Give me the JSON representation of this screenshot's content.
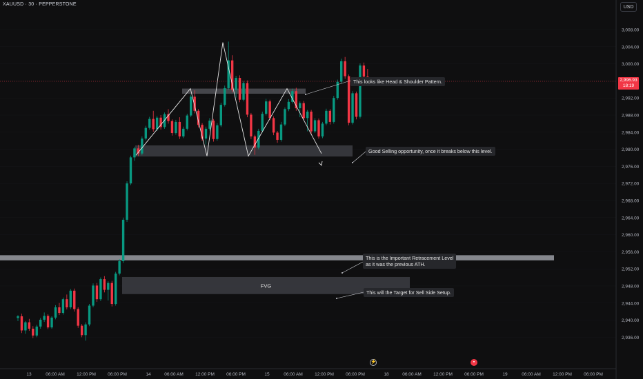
{
  "header": {
    "symbol": "XAUUSD · 30 · PEPPERSTONE",
    "currency": "USD"
  },
  "last_price": {
    "value": "2,996.93",
    "countdown": "18:19"
  },
  "chart_data": {
    "type": "candlestick",
    "y_ticks": [
      2936,
      2940,
      2944,
      2948,
      2952,
      2956,
      2960,
      2964,
      2968,
      2972,
      2976,
      2980,
      2984,
      2988,
      2992,
      2996,
      3000,
      3004,
      3008
    ],
    "y_tick_labels": [
      "2,936.00",
      "2,940.00",
      "2,944.00",
      "2,948.00",
      "2,952.00",
      "2,956.00",
      "2,960.00",
      "2,964.00",
      "2,968.00",
      "2,972.00",
      "2,976.00",
      "2,980.00",
      "2,984.00",
      "2,988.00",
      "2,992.00",
      "2,996.00",
      "3,000.00",
      "3,004.00",
      "3,008.00"
    ],
    "x_labels": [
      "13",
      "06:00 AM",
      "12:00 PM",
      "06:00 PM",
      "14",
      "06:00 AM",
      "12:00 PM",
      "06:00 PM",
      "15",
      "06:00 AM",
      "12:00 PM",
      "06:00 PM",
      "18",
      "06:00 AM",
      "12:00 PM",
      "06:00 PM",
      "19",
      "06:00 AM",
      "12:00 PM",
      "06:00 PM"
    ],
    "candles": [
      [
        2940.5,
        2941.2,
        2939.8,
        2940.9
      ],
      [
        2940.9,
        2941.5,
        2937.0,
        2937.6
      ],
      [
        2937.6,
        2939.8,
        2936.8,
        2939.5
      ],
      [
        2939.5,
        2940.3,
        2937.5,
        2938.0
      ],
      [
        2938.0,
        2938.6,
        2935.8,
        2936.4
      ],
      [
        2936.4,
        2938.9,
        2936.0,
        2938.5
      ],
      [
        2938.5,
        2940.5,
        2938.0,
        2940.1
      ],
      [
        2940.1,
        2941.8,
        2939.6,
        2941.0
      ],
      [
        2941.0,
        2941.4,
        2937.9,
        2938.3
      ],
      [
        2938.3,
        2940.9,
        2938.0,
        2940.6
      ],
      [
        2940.6,
        2943.5,
        2940.2,
        2943.0
      ],
      [
        2943.0,
        2944.0,
        2941.2,
        2941.7
      ],
      [
        2941.7,
        2945.3,
        2941.3,
        2944.9
      ],
      [
        2944.9,
        2946.0,
        2942.5,
        2943.0
      ],
      [
        2943.0,
        2947.3,
        2942.6,
        2946.9
      ],
      [
        2946.9,
        2947.4,
        2942.0,
        2942.6
      ],
      [
        2942.6,
        2943.0,
        2938.2,
        2938.7
      ],
      [
        2938.7,
        2939.1,
        2936.0,
        2936.5
      ],
      [
        2936.5,
        2939.5,
        2935.2,
        2939.0
      ],
      [
        2939.0,
        2943.8,
        2938.6,
        2943.4
      ],
      [
        2943.4,
        2948.6,
        2943.0,
        2948.1
      ],
      [
        2948.1,
        2948.7,
        2944.3,
        2944.9
      ],
      [
        2944.9,
        2950.0,
        2944.5,
        2949.6
      ],
      [
        2949.6,
        2950.3,
        2946.5,
        2947.1
      ],
      [
        2947.1,
        2949.1,
        2944.6,
        2948.7
      ],
      [
        2948.7,
        2949.2,
        2943.2,
        2943.8
      ],
      [
        2943.8,
        2951.3,
        2943.4,
        2950.9
      ],
      [
        2950.9,
        2954.3,
        2950.5,
        2953.8
      ],
      [
        2953.8,
        2964.0,
        2953.4,
        2963.5
      ],
      [
        2963.5,
        2972.5,
        2963.0,
        2972.0
      ],
      [
        2972.0,
        2978.5,
        2971.6,
        2978.1
      ],
      [
        2978.1,
        2980.6,
        2977.3,
        2980.2
      ],
      [
        2980.2,
        2981.0,
        2978.4,
        2979.0
      ],
      [
        2979.0,
        2983.0,
        2978.6,
        2982.5
      ],
      [
        2982.5,
        2985.5,
        2982.1,
        2985.0
      ],
      [
        2985.0,
        2987.6,
        2984.6,
        2987.1
      ],
      [
        2987.1,
        2989.0,
        2984.1,
        2984.7
      ],
      [
        2984.7,
        2987.8,
        2984.3,
        2987.4
      ],
      [
        2987.4,
        2988.0,
        2984.6,
        2985.2
      ],
      [
        2985.2,
        2988.6,
        2984.8,
        2988.2
      ],
      [
        2988.2,
        2989.4,
        2986.0,
        2986.6
      ],
      [
        2986.6,
        2987.0,
        2983.2,
        2983.8
      ],
      [
        2983.8,
        2986.9,
        2983.4,
        2986.4
      ],
      [
        2986.4,
        2987.5,
        2982.4,
        2983.0
      ],
      [
        2983.0,
        2985.3,
        2982.6,
        2984.8
      ],
      [
        2984.8,
        2988.3,
        2984.4,
        2987.9
      ],
      [
        2987.9,
        2992.8,
        2987.5,
        2992.3
      ],
      [
        2992.3,
        2993.8,
        2988.4,
        2989.0
      ],
      [
        2989.0,
        2989.4,
        2985.1,
        2985.7
      ],
      [
        2985.7,
        2986.1,
        2981.9,
        2982.5
      ],
      [
        2982.5,
        2985.3,
        2981.1,
        2984.8
      ],
      [
        2984.8,
        2987.3,
        2984.4,
        2986.7
      ],
      [
        2986.7,
        2987.1,
        2981.8,
        2982.4
      ],
      [
        2982.4,
        2986.1,
        2982.0,
        2985.6
      ],
      [
        2985.6,
        2990.9,
        2985.2,
        2990.4
      ],
      [
        2990.4,
        2994.9,
        2990.0,
        2994.3
      ],
      [
        2994.3,
        3005.2,
        2993.9,
        3000.8
      ],
      [
        3000.8,
        3002.0,
        2993.3,
        2993.9
      ],
      [
        2993.9,
        2997.2,
        2992.1,
        2996.7
      ],
      [
        2996.7,
        2997.3,
        2991.0,
        2991.6
      ],
      [
        2991.6,
        2996.0,
        2991.2,
        2995.5
      ],
      [
        2995.5,
        2996.1,
        2987.5,
        2988.1
      ],
      [
        2988.1,
        2988.5,
        2982.4,
        2983.0
      ],
      [
        2983.0,
        2983.4,
        2978.7,
        2980.4
      ],
      [
        2980.4,
        2984.8,
        2980.0,
        2984.3
      ],
      [
        2984.3,
        2988.8,
        2983.9,
        2988.3
      ],
      [
        2988.3,
        2991.8,
        2987.9,
        2991.2
      ],
      [
        2991.2,
        2991.6,
        2986.8,
        2987.3
      ],
      [
        2987.3,
        2987.7,
        2983.3,
        2983.9
      ],
      [
        2983.9,
        2984.3,
        2981.5,
        2982.2
      ],
      [
        2982.2,
        2986.4,
        2981.8,
        2985.8
      ],
      [
        2985.8,
        2989.8,
        2985.4,
        2989.4
      ],
      [
        2989.4,
        2991.7,
        2988.9,
        2991.1
      ],
      [
        2991.1,
        2994.2,
        2990.7,
        2993.6
      ],
      [
        2993.6,
        2994.4,
        2989.0,
        2989.6
      ],
      [
        2989.6,
        2991.2,
        2987.5,
        2990.8
      ],
      [
        2990.8,
        2991.3,
        2986.8,
        2987.3
      ],
      [
        2987.3,
        2989.2,
        2984.2,
        2988.8
      ],
      [
        2988.8,
        2989.2,
        2983.6,
        2984.2
      ],
      [
        2984.2,
        2987.3,
        2983.8,
        2986.8
      ],
      [
        2986.8,
        2987.2,
        2982.5,
        2983.0
      ],
      [
        2983.0,
        2986.4,
        2982.6,
        2986.0
      ],
      [
        2986.0,
        2989.5,
        2985.6,
        2989.0
      ],
      [
        2989.0,
        2989.4,
        2985.8,
        2986.4
      ],
      [
        2986.4,
        2992.5,
        2986.0,
        2992.0
      ],
      [
        2992.0,
        2996.3,
        2991.6,
        2995.8
      ],
      [
        2995.8,
        3001.2,
        2995.4,
        3000.6
      ],
      [
        3000.6,
        3001.6,
        2996.5,
        2997.1
      ],
      [
        2997.1,
        2997.5,
        2985.6,
        2986.2
      ],
      [
        2986.2,
        2993.6,
        2985.8,
        2993.1
      ],
      [
        2993.1,
        2993.5,
        2987.0,
        2987.6
      ],
      [
        2987.6,
        3000.1,
        2987.2,
        2999.6
      ],
      [
        2999.6,
        3000.3,
        2995.2,
        2997.0
      ],
      [
        2997.0,
        2998.8,
        2995.6,
        2996.93
      ]
    ],
    "last_price": 2996.93,
    "zones": [
      {
        "name": "neckline-zone",
        "y_low": 2978.3,
        "y_high": 2980.9
      },
      {
        "name": "shoulder-resistance-zone",
        "y_low": 2993.0,
        "y_high": 2994.2
      },
      {
        "name": "previous-ath-level",
        "y_low": 2954.0,
        "y_high": 2955.2
      },
      {
        "name": "fvg-zone",
        "label": "FVG",
        "y_low": 2946.1,
        "y_high": 2950.1
      }
    ],
    "head_and_shoulders_path": [
      [
        2978.6
      ],
      [
        2994.2
      ],
      [
        2978.4
      ],
      [
        3005.0
      ],
      [
        2978.4
      ],
      [
        2994.2
      ],
      [
        2979.0
      ]
    ],
    "annotations": [
      {
        "name": "head-shoulder-note",
        "text": "This looks like  Head & Shoulder Pattern."
      },
      {
        "name": "selling-note",
        "text": "Good Selling opportunity, once it breaks below this level."
      },
      {
        "name": "retracement-note",
        "text": "This is the Important Retracement Level\nas it was the previous ATH."
      },
      {
        "name": "target-note",
        "text": "This will the Target for Sell Side Setup."
      }
    ],
    "colors": {
      "up": "#089981",
      "down": "#f23645",
      "background": "#0f0f10",
      "zone": "#4a4b50",
      "level": "#9598a1"
    }
  }
}
